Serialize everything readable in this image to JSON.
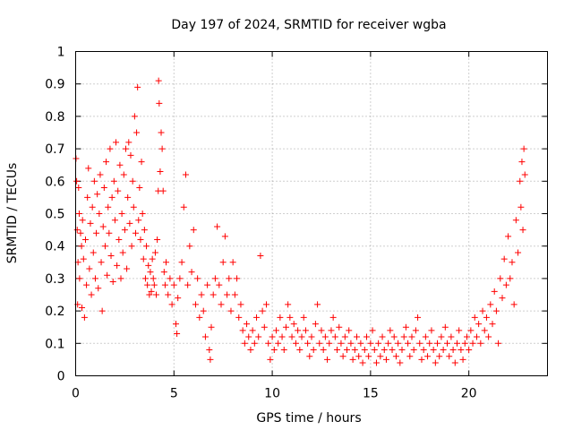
{
  "chart_data": {
    "type": "scatter",
    "title": "Day 197 of 2024, SRMTID for receiver wgba",
    "xlabel": "GPS time / hours",
    "ylabel": "SRMTID / TECUs",
    "xlim": [
      0,
      24
    ],
    "ylim": [
      0,
      1
    ],
    "xticks": [
      0,
      5,
      10,
      15,
      20
    ],
    "xtick_labels": [
      "0",
      "5",
      "10",
      "15",
      "20"
    ],
    "yticks": [
      0,
      0.1,
      0.2,
      0.3,
      0.4,
      0.5,
      0.6,
      0.7,
      0.8,
      0.9,
      1
    ],
    "ytick_labels": [
      "0",
      "0.1",
      "0.2",
      "0.3",
      "0.4",
      "0.5",
      "0.6",
      "0.7",
      "0.8",
      "0.9",
      "1"
    ],
    "grid": true,
    "marker": "+",
    "marker_color": "#ff0000",
    "series": [
      {
        "name": "SRMTID",
        "points": [
          [
            0.02,
            0.67
          ],
          [
            0.05,
            0.6
          ],
          [
            0.08,
            0.45
          ],
          [
            0.1,
            0.22
          ],
          [
            0.12,
            0.35
          ],
          [
            0.15,
            0.58
          ],
          [
            0.18,
            0.5
          ],
          [
            0.2,
            0.3
          ],
          [
            0.25,
            0.44
          ],
          [
            0.3,
            0.4
          ],
          [
            0.32,
            0.21
          ],
          [
            0.35,
            0.48
          ],
          [
            0.4,
            0.36
          ],
          [
            0.45,
            0.18
          ],
          [
            0.5,
            0.42
          ],
          [
            0.55,
            0.28
          ],
          [
            0.6,
            0.55
          ],
          [
            0.65,
            0.64
          ],
          [
            0.7,
            0.33
          ],
          [
            0.75,
            0.47
          ],
          [
            0.8,
            0.25
          ],
          [
            0.85,
            0.52
          ],
          [
            0.9,
            0.38
          ],
          [
            0.95,
            0.6
          ],
          [
            1.0,
            0.3
          ],
          [
            1.05,
            0.44
          ],
          [
            1.1,
            0.56
          ],
          [
            1.15,
            0.27
          ],
          [
            1.2,
            0.5
          ],
          [
            1.25,
            0.62
          ],
          [
            1.3,
            0.35
          ],
          [
            1.35,
            0.2
          ],
          [
            1.4,
            0.46
          ],
          [
            1.45,
            0.58
          ],
          [
            1.5,
            0.4
          ],
          [
            1.55,
            0.66
          ],
          [
            1.6,
            0.31
          ],
          [
            1.65,
            0.52
          ],
          [
            1.7,
            0.44
          ],
          [
            1.75,
            0.7
          ],
          [
            1.8,
            0.37
          ],
          [
            1.85,
            0.55
          ],
          [
            1.9,
            0.29
          ],
          [
            1.95,
            0.6
          ],
          [
            2.0,
            0.48
          ],
          [
            2.05,
            0.72
          ],
          [
            2.1,
            0.34
          ],
          [
            2.15,
            0.57
          ],
          [
            2.2,
            0.42
          ],
          [
            2.25,
            0.65
          ],
          [
            2.3,
            0.3
          ],
          [
            2.35,
            0.5
          ],
          [
            2.4,
            0.38
          ],
          [
            2.45,
            0.62
          ],
          [
            2.5,
            0.45
          ],
          [
            2.55,
            0.7
          ],
          [
            2.6,
            0.33
          ],
          [
            2.65,
            0.55
          ],
          [
            2.7,
            0.72
          ],
          [
            2.75,
            0.47
          ],
          [
            2.8,
            0.68
          ],
          [
            2.85,
            0.4
          ],
          [
            2.9,
            0.6
          ],
          [
            2.95,
            0.52
          ],
          [
            3.0,
            0.8
          ],
          [
            3.05,
            0.44
          ],
          [
            3.1,
            0.75
          ],
          [
            3.15,
            0.89
          ],
          [
            3.2,
            0.48
          ],
          [
            3.25,
            0.58
          ],
          [
            3.3,
            0.42
          ],
          [
            3.35,
            0.66
          ],
          [
            3.4,
            0.5
          ],
          [
            3.45,
            0.36
          ],
          [
            3.5,
            0.45
          ],
          [
            3.55,
            0.3
          ],
          [
            3.6,
            0.4
          ],
          [
            3.65,
            0.28
          ],
          [
            3.7,
            0.34
          ],
          [
            3.75,
            0.25
          ],
          [
            3.8,
            0.32
          ],
          [
            3.85,
            0.26
          ],
          [
            3.9,
            0.36
          ],
          [
            3.95,
            0.3
          ],
          [
            4.0,
            0.28
          ],
          [
            4.05,
            0.38
          ],
          [
            4.1,
            0.25
          ],
          [
            4.15,
            0.42
          ],
          [
            4.2,
            0.57
          ],
          [
            4.22,
            0.91
          ],
          [
            4.25,
            0.84
          ],
          [
            4.3,
            0.63
          ],
          [
            4.35,
            0.75
          ],
          [
            4.4,
            0.7
          ],
          [
            4.45,
            0.57
          ],
          [
            4.5,
            0.32
          ],
          [
            4.55,
            0.28
          ],
          [
            4.6,
            0.35
          ],
          [
            4.7,
            0.25
          ],
          [
            4.8,
            0.3
          ],
          [
            4.9,
            0.22
          ],
          [
            5.0,
            0.28
          ],
          [
            5.1,
            0.16
          ],
          [
            5.15,
            0.13
          ],
          [
            5.2,
            0.24
          ],
          [
            5.3,
            0.3
          ],
          [
            5.4,
            0.35
          ],
          [
            5.5,
            0.52
          ],
          [
            5.6,
            0.62
          ],
          [
            5.7,
            0.28
          ],
          [
            5.8,
            0.4
          ],
          [
            5.9,
            0.32
          ],
          [
            6.0,
            0.45
          ],
          [
            6.1,
            0.22
          ],
          [
            6.2,
            0.3
          ],
          [
            6.3,
            0.18
          ],
          [
            6.4,
            0.25
          ],
          [
            6.5,
            0.2
          ],
          [
            6.6,
            0.12
          ],
          [
            6.7,
            0.28
          ],
          [
            6.8,
            0.08
          ],
          [
            6.85,
            0.05
          ],
          [
            6.9,
            0.15
          ],
          [
            7.0,
            0.25
          ],
          [
            7.1,
            0.3
          ],
          [
            7.2,
            0.46
          ],
          [
            7.3,
            0.28
          ],
          [
            7.4,
            0.22
          ],
          [
            7.5,
            0.35
          ],
          [
            7.6,
            0.43
          ],
          [
            7.7,
            0.25
          ],
          [
            7.8,
            0.3
          ],
          [
            7.9,
            0.2
          ],
          [
            8.0,
            0.35
          ],
          [
            8.1,
            0.25
          ],
          [
            8.2,
            0.3
          ],
          [
            8.3,
            0.18
          ],
          [
            8.4,
            0.22
          ],
          [
            8.5,
            0.14
          ],
          [
            8.6,
            0.1
          ],
          [
            8.7,
            0.16
          ],
          [
            8.8,
            0.12
          ],
          [
            8.9,
            0.08
          ],
          [
            9.0,
            0.14
          ],
          [
            9.1,
            0.1
          ],
          [
            9.2,
            0.18
          ],
          [
            9.3,
            0.12
          ],
          [
            9.4,
            0.37
          ],
          [
            9.5,
            0.2
          ],
          [
            9.6,
            0.15
          ],
          [
            9.7,
            0.22
          ],
          [
            9.8,
            0.1
          ],
          [
            9.9,
            0.05
          ],
          [
            10.0,
            0.12
          ],
          [
            10.1,
            0.08
          ],
          [
            10.2,
            0.14
          ],
          [
            10.3,
            0.1
          ],
          [
            10.4,
            0.18
          ],
          [
            10.5,
            0.12
          ],
          [
            10.6,
            0.08
          ],
          [
            10.7,
            0.15
          ],
          [
            10.8,
            0.22
          ],
          [
            10.9,
            0.18
          ],
          [
            11.0,
            0.12
          ],
          [
            11.1,
            0.16
          ],
          [
            11.2,
            0.1
          ],
          [
            11.3,
            0.14
          ],
          [
            11.4,
            0.08
          ],
          [
            11.5,
            0.12
          ],
          [
            11.6,
            0.18
          ],
          [
            11.7,
            0.14
          ],
          [
            11.8,
            0.1
          ],
          [
            11.9,
            0.06
          ],
          [
            12.0,
            0.12
          ],
          [
            12.1,
            0.08
          ],
          [
            12.2,
            0.16
          ],
          [
            12.3,
            0.22
          ],
          [
            12.4,
            0.1
          ],
          [
            12.5,
            0.14
          ],
          [
            12.6,
            0.08
          ],
          [
            12.7,
            0.12
          ],
          [
            12.8,
            0.05
          ],
          [
            12.9,
            0.1
          ],
          [
            13.0,
            0.14
          ],
          [
            13.1,
            0.18
          ],
          [
            13.2,
            0.12
          ],
          [
            13.3,
            0.08
          ],
          [
            13.4,
            0.15
          ],
          [
            13.5,
            0.1
          ],
          [
            13.6,
            0.06
          ],
          [
            13.7,
            0.12
          ],
          [
            13.8,
            0.08
          ],
          [
            13.9,
            0.14
          ],
          [
            14.0,
            0.1
          ],
          [
            14.1,
            0.05
          ],
          [
            14.2,
            0.08
          ],
          [
            14.3,
            0.12
          ],
          [
            14.4,
            0.06
          ],
          [
            14.5,
            0.1
          ],
          [
            14.6,
            0.04
          ],
          [
            14.7,
            0.08
          ],
          [
            14.8,
            0.12
          ],
          [
            14.9,
            0.06
          ],
          [
            15.0,
            0.1
          ],
          [
            15.1,
            0.14
          ],
          [
            15.2,
            0.08
          ],
          [
            15.3,
            0.04
          ],
          [
            15.4,
            0.1
          ],
          [
            15.5,
            0.06
          ],
          [
            15.6,
            0.12
          ],
          [
            15.7,
            0.08
          ],
          [
            15.8,
            0.05
          ],
          [
            15.9,
            0.1
          ],
          [
            16.0,
            0.14
          ],
          [
            16.1,
            0.08
          ],
          [
            16.2,
            0.12
          ],
          [
            16.3,
            0.06
          ],
          [
            16.4,
            0.1
          ],
          [
            16.5,
            0.04
          ],
          [
            16.6,
            0.08
          ],
          [
            16.7,
            0.12
          ],
          [
            16.8,
            0.15
          ],
          [
            16.9,
            0.1
          ],
          [
            17.0,
            0.06
          ],
          [
            17.1,
            0.12
          ],
          [
            17.2,
            0.08
          ],
          [
            17.3,
            0.14
          ],
          [
            17.4,
            0.18
          ],
          [
            17.5,
            0.1
          ],
          [
            17.6,
            0.05
          ],
          [
            17.7,
            0.08
          ],
          [
            17.8,
            0.12
          ],
          [
            17.9,
            0.06
          ],
          [
            18.0,
            0.1
          ],
          [
            18.1,
            0.14
          ],
          [
            18.2,
            0.08
          ],
          [
            18.3,
            0.04
          ],
          [
            18.4,
            0.1
          ],
          [
            18.5,
            0.06
          ],
          [
            18.6,
            0.12
          ],
          [
            18.7,
            0.08
          ],
          [
            18.8,
            0.15
          ],
          [
            18.9,
            0.1
          ],
          [
            19.0,
            0.06
          ],
          [
            19.1,
            0.12
          ],
          [
            19.2,
            0.08
          ],
          [
            19.3,
            0.04
          ],
          [
            19.4,
            0.1
          ],
          [
            19.5,
            0.14
          ],
          [
            19.6,
            0.08
          ],
          [
            19.7,
            0.05
          ],
          [
            19.8,
            0.1
          ],
          [
            19.9,
            0.12
          ],
          [
            20.0,
            0.08
          ],
          [
            20.1,
            0.14
          ],
          [
            20.2,
            0.1
          ],
          [
            20.3,
            0.18
          ],
          [
            20.4,
            0.12
          ],
          [
            20.5,
            0.16
          ],
          [
            20.6,
            0.1
          ],
          [
            20.7,
            0.2
          ],
          [
            20.8,
            0.14
          ],
          [
            20.9,
            0.18
          ],
          [
            21.0,
            0.12
          ],
          [
            21.1,
            0.22
          ],
          [
            21.2,
            0.16
          ],
          [
            21.3,
            0.26
          ],
          [
            21.4,
            0.2
          ],
          [
            21.5,
            0.1
          ],
          [
            21.6,
            0.3
          ],
          [
            21.7,
            0.24
          ],
          [
            21.8,
            0.36
          ],
          [
            21.9,
            0.28
          ],
          [
            22.0,
            0.43
          ],
          [
            22.1,
            0.3
          ],
          [
            22.2,
            0.35
          ],
          [
            22.3,
            0.22
          ],
          [
            22.4,
            0.48
          ],
          [
            22.5,
            0.38
          ],
          [
            22.6,
            0.6
          ],
          [
            22.65,
            0.52
          ],
          [
            22.7,
            0.66
          ],
          [
            22.75,
            0.45
          ],
          [
            22.8,
            0.7
          ],
          [
            22.85,
            0.62
          ]
        ]
      }
    ]
  }
}
